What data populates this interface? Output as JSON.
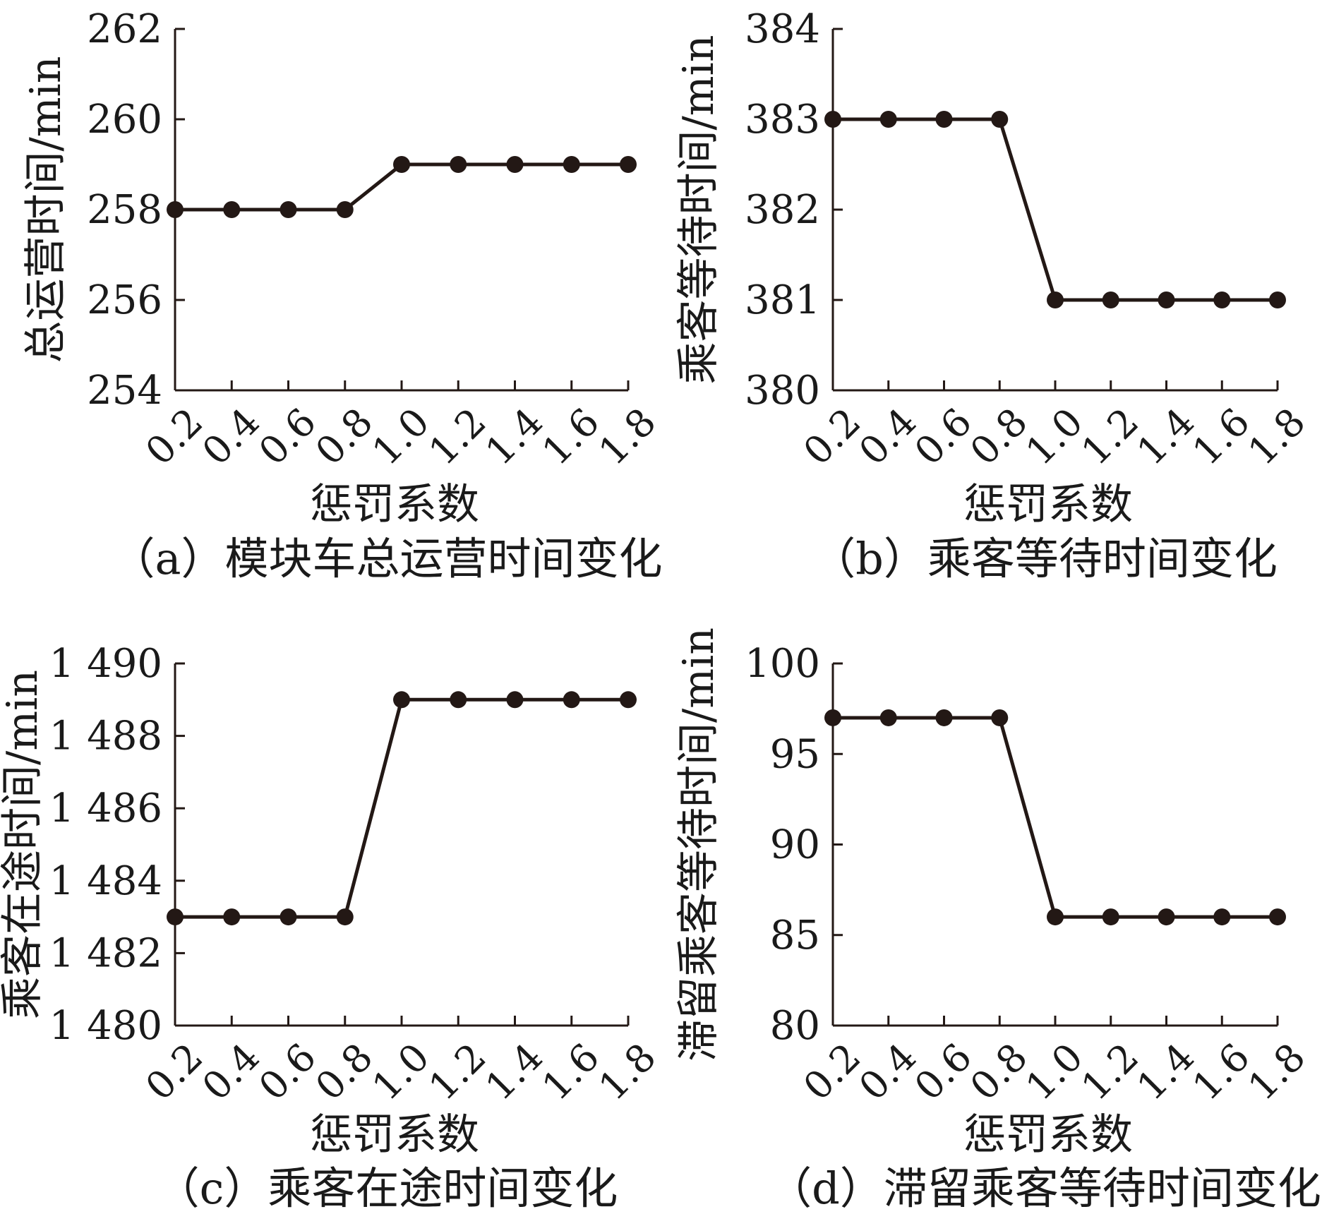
{
  "chart_data": [
    {
      "id": "a",
      "type": "line",
      "caption": "（a）模块车总运营时间变化",
      "xlabel": "惩罚系数",
      "ylabel": "总运营时间/min",
      "x": [
        "0.2",
        "0.4",
        "0.6",
        "0.8",
        "1.0",
        "1.2",
        "1.4",
        "1.6",
        "1.8"
      ],
      "series": [
        {
          "values": [
            258,
            258,
            258,
            258,
            259,
            259,
            259,
            259,
            259
          ]
        }
      ],
      "ylim": [
        254,
        262
      ],
      "yticks": [
        "254",
        "256",
        "258",
        "260",
        "262"
      ],
      "grid": false,
      "line_color": "#231815"
    },
    {
      "id": "b",
      "type": "line",
      "caption": "（b）乘客等待时间变化",
      "xlabel": "惩罚系数",
      "ylabel": "乘客等待时间/min",
      "x": [
        "0.2",
        "0.4",
        "0.6",
        "0.8",
        "1.0",
        "1.2",
        "1.4",
        "1.6",
        "1.8"
      ],
      "series": [
        {
          "values": [
            383,
            383,
            383,
            383,
            381,
            381,
            381,
            381,
            381
          ]
        }
      ],
      "ylim": [
        380,
        384
      ],
      "yticks": [
        "380",
        "381",
        "382",
        "383",
        "384"
      ],
      "grid": false,
      "line_color": "#231815"
    },
    {
      "id": "c",
      "type": "line",
      "caption": "（c）乘客在途时间变化",
      "xlabel": "惩罚系数",
      "ylabel": "乘客在途时间/min",
      "x": [
        "0.2",
        "0.4",
        "0.6",
        "0.8",
        "1.0",
        "1.2",
        "1.4",
        "1.6",
        "1.8"
      ],
      "series": [
        {
          "values": [
            1483,
            1483,
            1483,
            1483,
            1489,
            1489,
            1489,
            1489,
            1489
          ]
        }
      ],
      "ylim": [
        1480,
        1490
      ],
      "yticks": [
        "1 480",
        "1 482",
        "1 484",
        "1 486",
        "1 488",
        "1 490"
      ],
      "grid": false,
      "line_color": "#231815"
    },
    {
      "id": "d",
      "type": "line",
      "caption": "（d）滞留乘客等待时间变化",
      "xlabel": "惩罚系数",
      "ylabel": "滞留乘客等待时间/min",
      "x": [
        "0.2",
        "0.4",
        "0.6",
        "0.8",
        "1.0",
        "1.2",
        "1.4",
        "1.6",
        "1.8"
      ],
      "series": [
        {
          "values": [
            97,
            97,
            97,
            97,
            86,
            86,
            86,
            86,
            86
          ]
        }
      ],
      "ylim": [
        80,
        100
      ],
      "yticks": [
        "80",
        "85",
        "90",
        "95",
        "100"
      ],
      "grid": false,
      "line_color": "#231815"
    }
  ]
}
